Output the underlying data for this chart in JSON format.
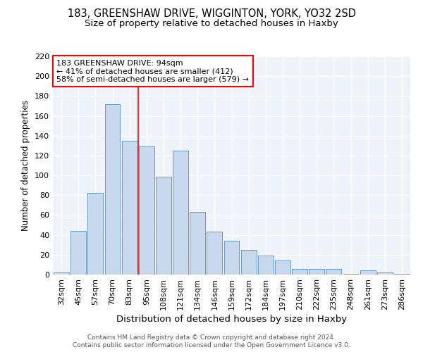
{
  "title1": "183, GREENSHAW DRIVE, WIGGINTON, YORK, YO32 2SD",
  "title2": "Size of property relative to detached houses in Haxby",
  "xlabel": "Distribution of detached houses by size in Haxby",
  "ylabel": "Number of detached properties",
  "categories": [
    "32sqm",
    "45sqm",
    "57sqm",
    "70sqm",
    "83sqm",
    "95sqm",
    "108sqm",
    "121sqm",
    "134sqm",
    "146sqm",
    "159sqm",
    "172sqm",
    "184sqm",
    "197sqm",
    "210sqm",
    "222sqm",
    "235sqm",
    "248sqm",
    "261sqm",
    "273sqm",
    "286sqm"
  ],
  "values": [
    2,
    44,
    82,
    172,
    135,
    129,
    99,
    125,
    63,
    43,
    34,
    25,
    19,
    14,
    6,
    6,
    6,
    1,
    4,
    2,
    1
  ],
  "bar_color": "#c8d9ee",
  "bar_edge_color": "#6699cc",
  "vline_x": 4.5,
  "annotation_text": "183 GREENSHAW DRIVE: 94sqm\n← 41% of detached houses are smaller (412)\n58% of semi-detached houses are larger (579) →",
  "annotation_box_color": "white",
  "annotation_box_edge_color": "red",
  "ylim": [
    0,
    220
  ],
  "yticks": [
    0,
    20,
    40,
    60,
    80,
    100,
    120,
    140,
    160,
    180,
    200,
    220
  ],
  "footer1": "Contains HM Land Registry data © Crown copyright and database right 2024.",
  "footer2": "Contains public sector information licensed under the Open Government Licence v3.0.",
  "bg_color": "#eef2f9",
  "grid_color": "white",
  "title1_fontsize": 10.5,
  "title2_fontsize": 9.5,
  "xlabel_fontsize": 9.5,
  "ylabel_fontsize": 8.5,
  "tick_fontsize": 8,
  "annotation_fontsize": 8,
  "footer_fontsize": 6.5
}
